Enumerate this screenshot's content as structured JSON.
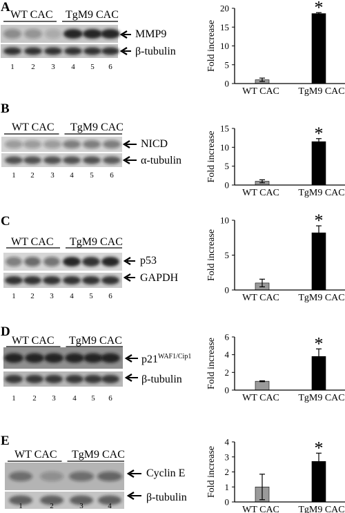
{
  "panels": [
    {
      "letter": "A",
      "blot_groups": [
        "WT CAC",
        "TgM9 CAC"
      ],
      "blot_rows": [
        "MMP9",
        "β-tubulin"
      ],
      "lane_numbers": [
        "1",
        "2",
        "3",
        "4",
        "5",
        "6"
      ]
    },
    {
      "letter": "B",
      "blot_groups": [
        "WT CAC",
        "TgM9 CAC"
      ],
      "blot_rows": [
        "NICD",
        "α-tubulin"
      ],
      "lane_numbers": [
        "1",
        "2",
        "3",
        "4",
        "5",
        "6"
      ]
    },
    {
      "letter": "C",
      "blot_groups": [
        "WT CAC",
        "TgM9 CAC"
      ],
      "blot_rows": [
        "p53",
        "GAPDH"
      ],
      "lane_numbers": [
        "1",
        "2",
        "3",
        "4",
        "5",
        "6"
      ]
    },
    {
      "letter": "D",
      "blot_groups": [
        "WT CAC",
        "TgM9 CAC"
      ],
      "blot_rows": [
        "p21",
        "β-tubulin"
      ],
      "blot_row_superscript": "WAF1/Cip1",
      "lane_numbers": [
        "1",
        "2",
        "3",
        "4",
        "5",
        "6"
      ]
    },
    {
      "letter": "E",
      "blot_groups": [
        "WT CAC",
        "TgM9 CAC"
      ],
      "blot_rows": [
        "Cyclin E",
        "β-tubulin"
      ],
      "lane_numbers": [
        "1",
        "2",
        "3",
        "4"
      ]
    }
  ],
  "chart_data": [
    {
      "type": "bar",
      "panel": "A",
      "categories": [
        "WT CAC",
        "TgM9 CAC"
      ],
      "values": [
        1.0,
        18.6
      ],
      "errors": [
        0.45,
        0.25
      ],
      "ylabel": "Fold increase",
      "ylim": [
        0,
        20
      ],
      "yticks": [
        "0",
        "5",
        "10",
        "15",
        "20"
      ],
      "significance": "*",
      "bar_colors": [
        "#9a9a9a",
        "#000000"
      ]
    },
    {
      "type": "bar",
      "panel": "B",
      "categories": [
        "WT CAC",
        "TgM9 CAC"
      ],
      "values": [
        1.0,
        11.5
      ],
      "errors": [
        0.4,
        0.8
      ],
      "ylabel": "Fold increase",
      "ylim": [
        0,
        15
      ],
      "yticks": [
        "0",
        "5",
        "10",
        "15"
      ],
      "significance": "*",
      "bar_colors": [
        "#9a9a9a",
        "#000000"
      ]
    },
    {
      "type": "bar",
      "panel": "C",
      "categories": [
        "WT CAC",
        "TgM9 CAC"
      ],
      "values": [
        1.0,
        8.2
      ],
      "errors": [
        0.55,
        1.0
      ],
      "ylabel": "Fold increase",
      "ylim": [
        0,
        10
      ],
      "yticks": [
        "0",
        "5",
        "10"
      ],
      "significance": "*",
      "bar_colors": [
        "#9a9a9a",
        "#000000"
      ]
    },
    {
      "type": "bar",
      "panel": "D",
      "categories": [
        "WT CAC",
        "TgM9 CAC"
      ],
      "values": [
        1.0,
        3.8
      ],
      "errors": [
        0.05,
        0.85
      ],
      "ylabel": "Fold increase",
      "ylim": [
        0,
        6
      ],
      "yticks": [
        "0",
        "2",
        "4",
        "6"
      ],
      "significance": "*",
      "bar_colors": [
        "#9a9a9a",
        "#000000"
      ]
    },
    {
      "type": "bar",
      "panel": "E",
      "categories": [
        "WT CAC",
        "TgM9 CAC"
      ],
      "values": [
        1.0,
        2.7
      ],
      "errors": [
        0.85,
        0.55
      ],
      "ylabel": "Fold increase",
      "ylim": [
        0,
        4
      ],
      "yticks": [
        "0",
        "1",
        "2",
        "3",
        "4"
      ],
      "significance": "*",
      "bar_colors": [
        "#9a9a9a",
        "#000000"
      ]
    }
  ]
}
